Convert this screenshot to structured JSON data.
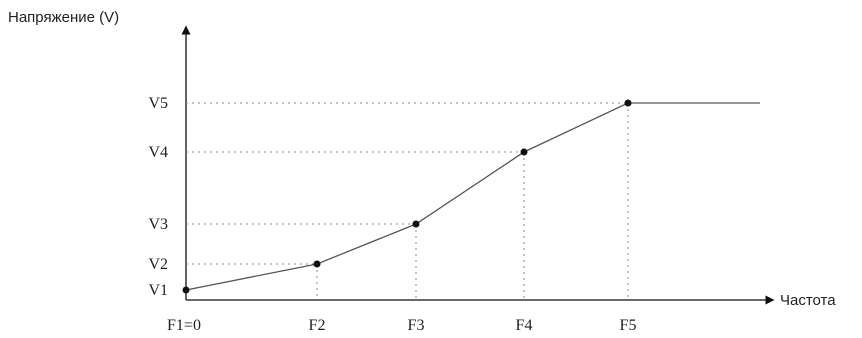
{
  "axes": {
    "y_label": "Напряжение (V)",
    "x_label": "Частота"
  },
  "points": [
    {
      "v": "V1",
      "f": "F1=0"
    },
    {
      "v": "V2",
      "f": "F2"
    },
    {
      "v": "V3",
      "f": "F3"
    },
    {
      "v": "V4",
      "f": "F4"
    },
    {
      "v": "V5",
      "f": "F5"
    }
  ]
}
